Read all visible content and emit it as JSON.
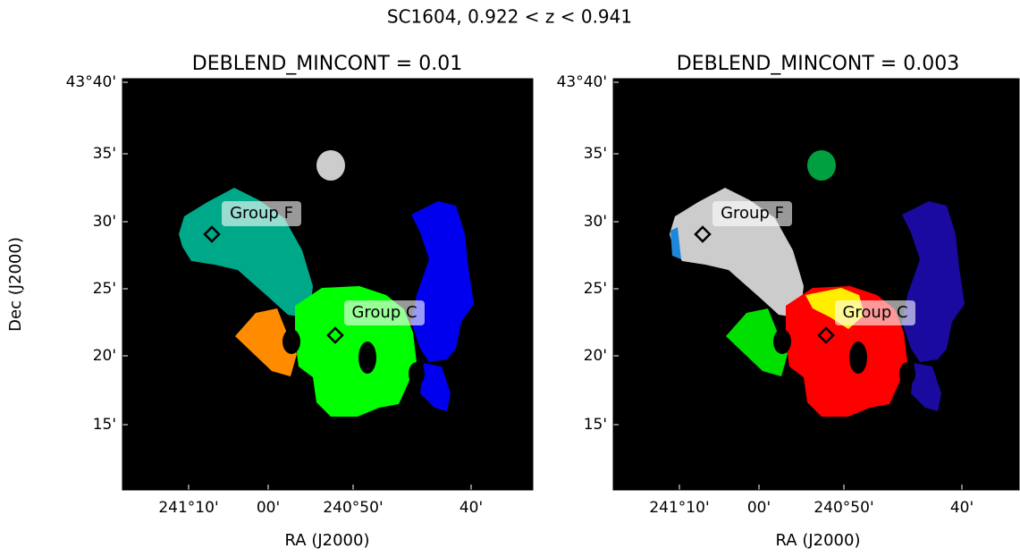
{
  "title": "SC1604, 0.922 < z < 0.941",
  "panels": [
    {
      "title": "DEBLEND_MINCONT = 0.01",
      "x_label": "RA (J2000)",
      "y_label": "Dec (J2000)",
      "x_ticks": [
        "241°10'",
        "00'",
        "240°50'",
        "40'"
      ],
      "y_ticks": [
        "43°40'",
        "35'",
        "30'",
        "25'",
        "20'",
        "15'"
      ],
      "annotations": [
        "Group F",
        "Group C"
      ]
    },
    {
      "title": "DEBLEND_MINCONT = 0.003",
      "x_label": "RA (J2000)",
      "x_ticks": [
        "241°10'",
        "00'",
        "240°50'",
        "40'"
      ],
      "y_ticks": [
        "43°40'",
        "35'",
        "30'",
        "25'",
        "20'",
        "15'"
      ],
      "annotations": [
        "Group F",
        "Group C"
      ]
    }
  ]
}
